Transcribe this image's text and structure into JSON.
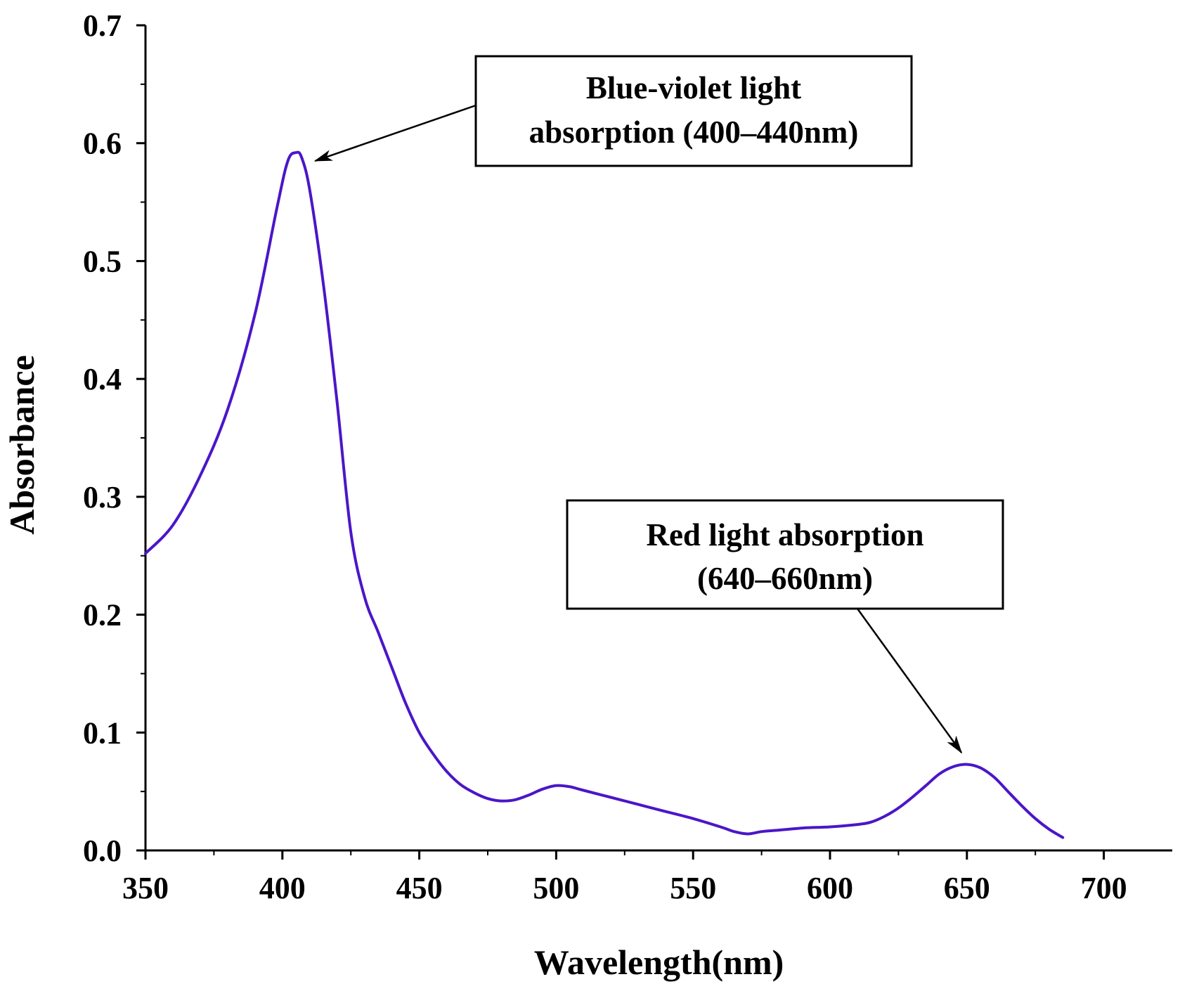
{
  "chart_data": {
    "type": "line",
    "title": "",
    "xlabel": "Wavelength(nm)",
    "ylabel": "Absorbance",
    "xlim": [
      350,
      725
    ],
    "ylim": [
      0,
      0.7
    ],
    "x_ticks": [
      350,
      400,
      450,
      500,
      550,
      600,
      650,
      700
    ],
    "x_tick_labels": [
      "350",
      "400",
      "450",
      "500",
      "550",
      "600",
      "650",
      "700"
    ],
    "y_ticks": [
      0.0,
      0.1,
      0.2,
      0.3,
      0.4,
      0.5,
      0.6,
      0.7
    ],
    "y_tick_labels": [
      "0.0",
      "0.1",
      "0.2",
      "0.3",
      "0.4",
      "0.5",
      "0.6",
      "0.7"
    ],
    "grid": false,
    "series": [
      {
        "name": "Absorbance",
        "color": "#4B16C8",
        "x": [
          350,
          360,
          370,
          380,
          390,
          398,
          402,
          405,
          407,
          410,
          415,
          420,
          425,
          430,
          435,
          440,
          445,
          450,
          455,
          460,
          465,
          470,
          475,
          480,
          485,
          490,
          495,
          500,
          505,
          510,
          520,
          530,
          540,
          550,
          560,
          565,
          570,
          575,
          580,
          590,
          600,
          610,
          615,
          620,
          625,
          630,
          635,
          640,
          645,
          650,
          655,
          660,
          665,
          670,
          675,
          680,
          685
        ],
        "y": [
          0.252,
          0.276,
          0.318,
          0.374,
          0.455,
          0.545,
          0.585,
          0.592,
          0.588,
          0.56,
          0.48,
          0.38,
          0.27,
          0.215,
          0.185,
          0.155,
          0.125,
          0.1,
          0.082,
          0.067,
          0.056,
          0.049,
          0.044,
          0.042,
          0.043,
          0.047,
          0.052,
          0.055,
          0.054,
          0.051,
          0.045,
          0.039,
          0.033,
          0.027,
          0.02,
          0.016,
          0.014,
          0.016,
          0.017,
          0.019,
          0.02,
          0.022,
          0.024,
          0.029,
          0.036,
          0.045,
          0.055,
          0.065,
          0.071,
          0.073,
          0.07,
          0.062,
          0.05,
          0.038,
          0.027,
          0.018,
          0.011
        ]
      }
    ],
    "annotations": [
      {
        "lines": [
          "Blue-violet light",
          "absorption (400–440nm)"
        ],
        "target": [
          412,
          0.585
        ]
      },
      {
        "lines": [
          "Red light absorption",
          "(640–660nm)"
        ],
        "target": [
          648,
          0.083
        ]
      }
    ]
  }
}
